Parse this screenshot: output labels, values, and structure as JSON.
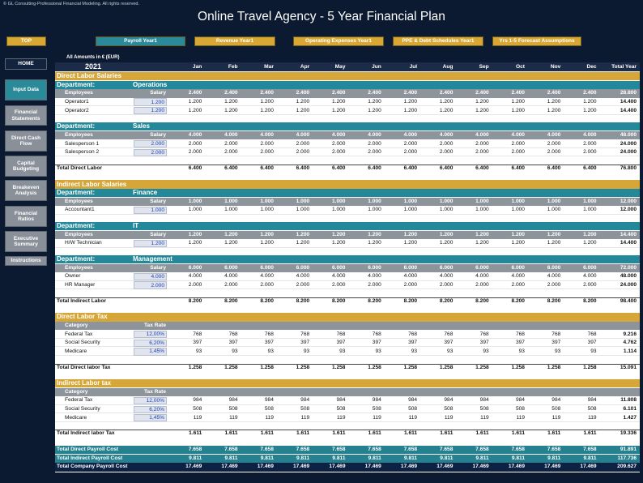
{
  "header": {
    "copyright": "© GL Consulting-Professional Financial Modeling. All rights reserved.",
    "title": "Online Travel Agency - 5 Year Financial Plan"
  },
  "nav": [
    "TOP",
    "Payroll Year1",
    "Revenue Year1",
    "Operating Expenses Year1",
    "PPE & Debt Schedules Year1",
    "Yrs 1-5 Forecast Assumptions"
  ],
  "sidebar": [
    "HOME",
    "Input Data",
    "Financial Statements",
    "Direct Cash Flow",
    "Capital Budgeting",
    "Breakeven Analysis",
    "Financial Ratios",
    "Executive Summary",
    "Instructions"
  ],
  "sheet": {
    "currency_note": "All Amounts in € (EUR)",
    "year": "2021",
    "months": [
      "Jan",
      "Feb",
      "Mar",
      "Apr",
      "May",
      "Jun",
      "Jul",
      "Aug",
      "Sep",
      "Oct",
      "Nov",
      "Dec"
    ],
    "total_label": "Total Year",
    "rows": [
      {
        "kind": "section",
        "label": "Direct Labor Salaries"
      },
      {
        "kind": "department",
        "label": "Department:",
        "name": "Operations"
      },
      {
        "kind": "subhead",
        "label": "Employees",
        "input_label": "Salary",
        "cells": [
          "2.400",
          "2.400",
          "2.400",
          "2.400",
          "2.400",
          "2.400",
          "2.400",
          "2.400",
          "2.400",
          "2.400",
          "2.400",
          "2.400"
        ],
        "total": "28.800"
      },
      {
        "kind": "item",
        "label": "Operator1",
        "input": "1.200",
        "cells": [
          "1.200",
          "1.200",
          "1.200",
          "1.200",
          "1.200",
          "1.200",
          "1.200",
          "1.200",
          "1.200",
          "1.200",
          "1.200",
          "1.200"
        ],
        "total": "14.400"
      },
      {
        "kind": "item",
        "label": "Operator2",
        "input": "1.200",
        "cells": [
          "1.200",
          "1.200",
          "1.200",
          "1.200",
          "1.200",
          "1.200",
          "1.200",
          "1.200",
          "1.200",
          "1.200",
          "1.200",
          "1.200"
        ],
        "total": "14.400"
      },
      {
        "kind": "department",
        "label": "Department:",
        "name": "Sales"
      },
      {
        "kind": "subhead",
        "label": "Employees",
        "input_label": "Salary",
        "cells": [
          "4.000",
          "4.000",
          "4.000",
          "4.000",
          "4.000",
          "4.000",
          "4.000",
          "4.000",
          "4.000",
          "4.000",
          "4.000",
          "4.000"
        ],
        "total": "48.000"
      },
      {
        "kind": "item",
        "label": "Salesperson 1",
        "input": "2.000",
        "cells": [
          "2.000",
          "2.000",
          "2.000",
          "2.000",
          "2.000",
          "2.000",
          "2.000",
          "2.000",
          "2.000",
          "2.000",
          "2.000",
          "2.000"
        ],
        "total": "24.000"
      },
      {
        "kind": "item",
        "label": "Salesperson 2",
        "input": "2.000",
        "cells": [
          "2.000",
          "2.000",
          "2.000",
          "2.000",
          "2.000",
          "2.000",
          "2.000",
          "2.000",
          "2.000",
          "2.000",
          "2.000",
          "2.000"
        ],
        "total": "24.000"
      },
      {
        "kind": "total",
        "label": "Total Direct Labor",
        "cells": [
          "6.400",
          "6.400",
          "6.400",
          "6.400",
          "6.400",
          "6.400",
          "6.400",
          "6.400",
          "6.400",
          "6.400",
          "6.400",
          "6.400"
        ],
        "total": "76.800"
      },
      {
        "kind": "section",
        "label": "Indirect Labor Salaries"
      },
      {
        "kind": "department",
        "label": "Department:",
        "name": "Finance"
      },
      {
        "kind": "subhead",
        "label": "Employees",
        "input_label": "Salary",
        "cells": [
          "1.000",
          "1.000",
          "1.000",
          "1.000",
          "1.000",
          "1.000",
          "1.000",
          "1.000",
          "1.000",
          "1.000",
          "1.000",
          "1.000"
        ],
        "total": "12.000"
      },
      {
        "kind": "item",
        "label": "Accountant1",
        "input": "1.000",
        "cells": [
          "1.000",
          "1.000",
          "1.000",
          "1.000",
          "1.000",
          "1.000",
          "1.000",
          "1.000",
          "1.000",
          "1.000",
          "1.000",
          "1.000"
        ],
        "total": "12.000"
      },
      {
        "kind": "department",
        "label": "Department:",
        "name": "IT"
      },
      {
        "kind": "subhead",
        "label": "Employees",
        "input_label": "Salary",
        "cells": [
          "1.200",
          "1.200",
          "1.200",
          "1.200",
          "1.200",
          "1.200",
          "1.200",
          "1.200",
          "1.200",
          "1.200",
          "1.200",
          "1.200"
        ],
        "total": "14.400"
      },
      {
        "kind": "item",
        "label": "H/W Technician",
        "input": "1.200",
        "cells": [
          "1.200",
          "1.200",
          "1.200",
          "1.200",
          "1.200",
          "1.200",
          "1.200",
          "1.200",
          "1.200",
          "1.200",
          "1.200",
          "1.200"
        ],
        "total": "14.400"
      },
      {
        "kind": "department",
        "label": "Department:",
        "name": "Management"
      },
      {
        "kind": "subhead",
        "label": "Employees",
        "input_label": "Salary",
        "cells": [
          "6.000",
          "6.000",
          "6.000",
          "6.000",
          "6.000",
          "6.000",
          "6.000",
          "6.000",
          "6.000",
          "6.000",
          "6.000",
          "6.000"
        ],
        "total": "72.000"
      },
      {
        "kind": "item",
        "label": "Owner",
        "input": "4.000",
        "cells": [
          "4.000",
          "4.000",
          "4.000",
          "4.000",
          "4.000",
          "4.000",
          "4.000",
          "4.000",
          "4.000",
          "4.000",
          "4.000",
          "4.000"
        ],
        "total": "48.000"
      },
      {
        "kind": "item",
        "label": "HR Manager",
        "input": "2.000",
        "cells": [
          "2.000",
          "2.000",
          "2.000",
          "2.000",
          "2.000",
          "2.000",
          "2.000",
          "2.000",
          "2.000",
          "2.000",
          "2.000",
          "2.000"
        ],
        "total": "24.000"
      },
      {
        "kind": "total",
        "label": "Total Indirect Labor",
        "cells": [
          "8.200",
          "8.200",
          "8.200",
          "8.200",
          "8.200",
          "8.200",
          "8.200",
          "8.200",
          "8.200",
          "8.200",
          "8.200",
          "8.200"
        ],
        "total": "98.400"
      },
      {
        "kind": "section",
        "label": "Direct Labor Tax"
      },
      {
        "kind": "subhead",
        "label": "Category",
        "input_label": "Tax Rate"
      },
      {
        "kind": "item",
        "label": "Federal Tax",
        "input": "12,00%",
        "cells": [
          "768",
          "768",
          "768",
          "768",
          "768",
          "768",
          "768",
          "768",
          "768",
          "768",
          "768",
          "768"
        ],
        "total": "9.216"
      },
      {
        "kind": "item",
        "label": "Social Security",
        "input": "6,20%",
        "cells": [
          "397",
          "397",
          "397",
          "397",
          "397",
          "397",
          "397",
          "397",
          "397",
          "397",
          "397",
          "397"
        ],
        "total": "4.762"
      },
      {
        "kind": "item",
        "label": "Medicare",
        "input": "1,45%",
        "cells": [
          "93",
          "93",
          "93",
          "93",
          "93",
          "93",
          "93",
          "93",
          "93",
          "93",
          "93",
          "93"
        ],
        "total": "1.114"
      },
      {
        "kind": "total",
        "label": "Total Direct labor Tax",
        "cells": [
          "1.258",
          "1.258",
          "1.258",
          "1.258",
          "1.258",
          "1.258",
          "1.258",
          "1.258",
          "1.258",
          "1.258",
          "1.258",
          "1.258"
        ],
        "total": "15.091"
      },
      {
        "kind": "section",
        "label": "Indirect Labor tax"
      },
      {
        "kind": "subhead",
        "label": "Category",
        "input_label": "Tax Rate"
      },
      {
        "kind": "item",
        "label": "Federal Tax",
        "input": "12,00%",
        "cells": [
          "984",
          "984",
          "984",
          "984",
          "984",
          "984",
          "984",
          "984",
          "984",
          "984",
          "984",
          "984"
        ],
        "total": "11.808"
      },
      {
        "kind": "item",
        "label": "Social Security",
        "input": "6,20%",
        "cells": [
          "508",
          "508",
          "508",
          "508",
          "508",
          "508",
          "508",
          "508",
          "508",
          "508",
          "508",
          "508"
        ],
        "total": "6.101"
      },
      {
        "kind": "item",
        "label": "Medicare",
        "input": "1,45%",
        "cells": [
          "119",
          "119",
          "119",
          "119",
          "119",
          "119",
          "119",
          "119",
          "119",
          "119",
          "119",
          "119"
        ],
        "total": "1.427"
      },
      {
        "kind": "total",
        "label": "Total Indirect labor Tax",
        "cells": [
          "1.611",
          "1.611",
          "1.611",
          "1.611",
          "1.611",
          "1.611",
          "1.611",
          "1.611",
          "1.611",
          "1.611",
          "1.611",
          "1.611"
        ],
        "total": "19.336"
      },
      {
        "kind": "grand",
        "label": "Total Direct Payroll Cost",
        "cells": [
          "7.658",
          "7.658",
          "7.658",
          "7.658",
          "7.658",
          "7.658",
          "7.658",
          "7.658",
          "7.658",
          "7.658",
          "7.658",
          "7.658"
        ],
        "total": "91.891"
      },
      {
        "kind": "grand",
        "label": "Total Indirect Payroll Cost",
        "cells": [
          "9.811",
          "9.811",
          "9.811",
          "9.811",
          "9.811",
          "9.811",
          "9.811",
          "9.811",
          "9.811",
          "9.811",
          "9.811",
          "9.811"
        ],
        "total": "117.736"
      },
      {
        "kind": "grand",
        "label": "Total Company Payroll Cost",
        "cells": [
          "17.469",
          "17.469",
          "17.469",
          "17.469",
          "17.469",
          "17.469",
          "17.469",
          "17.469",
          "17.469",
          "17.469",
          "17.469",
          "17.469"
        ],
        "total": "209.627"
      }
    ]
  }
}
